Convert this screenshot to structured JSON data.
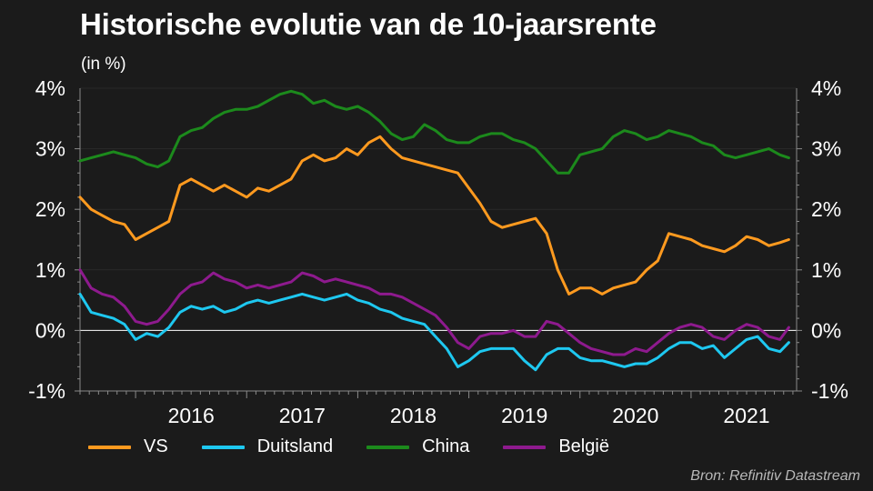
{
  "chart_data": {
    "type": "line",
    "title": "Historische evolutie van de 10-jaarsrente",
    "subtitle": "(in %)",
    "y_ticks_left": [
      "4%",
      "3%",
      "2%",
      "1%",
      "0%",
      "-1%"
    ],
    "y_ticks_right": [
      "4%",
      "3%",
      "2%",
      "1%",
      "0%",
      "-1%"
    ],
    "ylim": [
      -1,
      4
    ],
    "xlim": [
      2015.5,
      2021.95
    ],
    "x_ticks": [
      "2016",
      "2017",
      "2018",
      "2019",
      "2020",
      "2021"
    ],
    "grid": "horizontal",
    "legend_position": "bottom",
    "series": [
      {
        "name": "VS",
        "color": "#ff9a1f",
        "x": [
          2015.5,
          2015.6,
          2015.7,
          2015.8,
          2015.9,
          2016.0,
          2016.1,
          2016.2,
          2016.3,
          2016.4,
          2016.5,
          2016.6,
          2016.7,
          2016.8,
          2016.9,
          2017.0,
          2017.1,
          2017.2,
          2017.3,
          2017.4,
          2017.5,
          2017.6,
          2017.7,
          2017.8,
          2017.9,
          2018.0,
          2018.1,
          2018.2,
          2018.3,
          2018.4,
          2018.5,
          2018.6,
          2018.7,
          2018.8,
          2018.9,
          2019.0,
          2019.1,
          2019.2,
          2019.3,
          2019.4,
          2019.5,
          2019.6,
          2019.7,
          2019.8,
          2019.9,
          2020.0,
          2020.1,
          2020.2,
          2020.3,
          2020.4,
          2020.5,
          2020.6,
          2020.7,
          2020.8,
          2020.9,
          2021.0,
          2021.1,
          2021.2,
          2021.3,
          2021.4,
          2021.5,
          2021.6,
          2021.7,
          2021.8,
          2021.88
        ],
        "values": [
          2.2,
          2.0,
          1.9,
          1.8,
          1.75,
          1.5,
          1.6,
          1.7,
          1.8,
          2.4,
          2.5,
          2.4,
          2.3,
          2.4,
          2.3,
          2.2,
          2.35,
          2.3,
          2.4,
          2.5,
          2.8,
          2.9,
          2.8,
          2.85,
          3.0,
          2.9,
          3.1,
          3.2,
          3.0,
          2.85,
          2.8,
          2.75,
          2.7,
          2.65,
          2.6,
          2.35,
          2.1,
          1.8,
          1.7,
          1.75,
          1.8,
          1.85,
          1.6,
          1.0,
          0.6,
          0.7,
          0.7,
          0.6,
          0.7,
          0.75,
          0.8,
          1.0,
          1.15,
          1.6,
          1.55,
          1.5,
          1.4,
          1.35,
          1.3,
          1.4,
          1.55,
          1.5,
          1.4,
          1.45,
          1.5
        ]
      },
      {
        "name": "Duitsland",
        "color": "#1ec8f0",
        "x": [
          2015.5,
          2015.6,
          2015.7,
          2015.8,
          2015.9,
          2016.0,
          2016.1,
          2016.2,
          2016.3,
          2016.4,
          2016.5,
          2016.6,
          2016.7,
          2016.8,
          2016.9,
          2017.0,
          2017.1,
          2017.2,
          2017.3,
          2017.4,
          2017.5,
          2017.6,
          2017.7,
          2017.8,
          2017.9,
          2018.0,
          2018.1,
          2018.2,
          2018.3,
          2018.4,
          2018.5,
          2018.6,
          2018.7,
          2018.8,
          2018.9,
          2019.0,
          2019.1,
          2019.2,
          2019.3,
          2019.4,
          2019.5,
          2019.6,
          2019.7,
          2019.8,
          2019.9,
          2020.0,
          2020.1,
          2020.2,
          2020.3,
          2020.4,
          2020.5,
          2020.6,
          2020.7,
          2020.8,
          2020.9,
          2021.0,
          2021.1,
          2021.2,
          2021.3,
          2021.4,
          2021.5,
          2021.6,
          2021.7,
          2021.8,
          2021.88
        ],
        "values": [
          0.6,
          0.3,
          0.25,
          0.2,
          0.1,
          -0.15,
          -0.05,
          -0.1,
          0.05,
          0.3,
          0.4,
          0.35,
          0.4,
          0.3,
          0.35,
          0.45,
          0.5,
          0.45,
          0.5,
          0.55,
          0.6,
          0.55,
          0.5,
          0.55,
          0.6,
          0.5,
          0.45,
          0.35,
          0.3,
          0.2,
          0.15,
          0.1,
          -0.1,
          -0.3,
          -0.6,
          -0.5,
          -0.35,
          -0.3,
          -0.3,
          -0.3,
          -0.5,
          -0.65,
          -0.4,
          -0.3,
          -0.3,
          -0.45,
          -0.5,
          -0.5,
          -0.55,
          -0.6,
          -0.55,
          -0.55,
          -0.45,
          -0.3,
          -0.2,
          -0.2,
          -0.3,
          -0.25,
          -0.45,
          -0.3,
          -0.15,
          -0.1,
          -0.3,
          -0.35,
          -0.2
        ]
      },
      {
        "name": "China",
        "color": "#1c8a1c",
        "x": [
          2015.5,
          2015.6,
          2015.7,
          2015.8,
          2015.9,
          2016.0,
          2016.1,
          2016.2,
          2016.3,
          2016.4,
          2016.5,
          2016.6,
          2016.7,
          2016.8,
          2016.9,
          2017.0,
          2017.1,
          2017.2,
          2017.3,
          2017.4,
          2017.5,
          2017.6,
          2017.7,
          2017.8,
          2017.9,
          2018.0,
          2018.1,
          2018.2,
          2018.3,
          2018.4,
          2018.5,
          2018.6,
          2018.7,
          2018.8,
          2018.9,
          2019.0,
          2019.1,
          2019.2,
          2019.3,
          2019.4,
          2019.5,
          2019.6,
          2019.7,
          2019.8,
          2019.9,
          2020.0,
          2020.1,
          2020.2,
          2020.3,
          2020.4,
          2020.5,
          2020.6,
          2020.7,
          2020.8,
          2020.9,
          2021.0,
          2021.1,
          2021.2,
          2021.3,
          2021.4,
          2021.5,
          2021.6,
          2021.7,
          2021.8,
          2021.88
        ],
        "values": [
          2.8,
          2.85,
          2.9,
          2.95,
          2.9,
          2.85,
          2.75,
          2.7,
          2.8,
          3.2,
          3.3,
          3.35,
          3.5,
          3.6,
          3.65,
          3.65,
          3.7,
          3.8,
          3.9,
          3.95,
          3.9,
          3.75,
          3.8,
          3.7,
          3.65,
          3.7,
          3.6,
          3.45,
          3.25,
          3.15,
          3.2,
          3.4,
          3.3,
          3.15,
          3.1,
          3.1,
          3.2,
          3.25,
          3.25,
          3.15,
          3.1,
          3.0,
          2.8,
          2.6,
          2.6,
          2.9,
          2.95,
          3.0,
          3.2,
          3.3,
          3.25,
          3.15,
          3.2,
          3.3,
          3.25,
          3.2,
          3.1,
          3.05,
          2.9,
          2.85,
          2.9,
          2.95,
          3.0,
          2.9,
          2.85
        ]
      },
      {
        "name": "België",
        "color": "#8e1a8e",
        "x": [
          2015.5,
          2015.6,
          2015.7,
          2015.8,
          2015.9,
          2016.0,
          2016.1,
          2016.2,
          2016.3,
          2016.4,
          2016.5,
          2016.6,
          2016.7,
          2016.8,
          2016.9,
          2017.0,
          2017.1,
          2017.2,
          2017.3,
          2017.4,
          2017.5,
          2017.6,
          2017.7,
          2017.8,
          2017.9,
          2018.0,
          2018.1,
          2018.2,
          2018.3,
          2018.4,
          2018.5,
          2018.6,
          2018.7,
          2018.8,
          2018.9,
          2019.0,
          2019.1,
          2019.2,
          2019.3,
          2019.4,
          2019.5,
          2019.6,
          2019.7,
          2019.8,
          2019.9,
          2020.0,
          2020.1,
          2020.2,
          2020.3,
          2020.4,
          2020.5,
          2020.6,
          2020.7,
          2020.8,
          2020.9,
          2021.0,
          2021.1,
          2021.2,
          2021.3,
          2021.4,
          2021.5,
          2021.6,
          2021.7,
          2021.8,
          2021.88
        ],
        "values": [
          1.0,
          0.7,
          0.6,
          0.55,
          0.4,
          0.15,
          0.1,
          0.15,
          0.35,
          0.6,
          0.75,
          0.8,
          0.95,
          0.85,
          0.8,
          0.7,
          0.75,
          0.7,
          0.75,
          0.8,
          0.95,
          0.9,
          0.8,
          0.85,
          0.8,
          0.75,
          0.7,
          0.6,
          0.6,
          0.55,
          0.45,
          0.35,
          0.25,
          0.05,
          -0.2,
          -0.3,
          -0.1,
          -0.05,
          -0.05,
          0.0,
          -0.1,
          -0.1,
          0.15,
          0.1,
          -0.05,
          -0.2,
          -0.3,
          -0.35,
          -0.4,
          -0.4,
          -0.3,
          -0.35,
          -0.2,
          -0.05,
          0.05,
          0.1,
          0.05,
          -0.1,
          -0.15,
          0.0,
          0.1,
          0.05,
          -0.1,
          -0.15,
          0.05
        ]
      }
    ],
    "source": "Bron: Refinitiv Datastream"
  }
}
